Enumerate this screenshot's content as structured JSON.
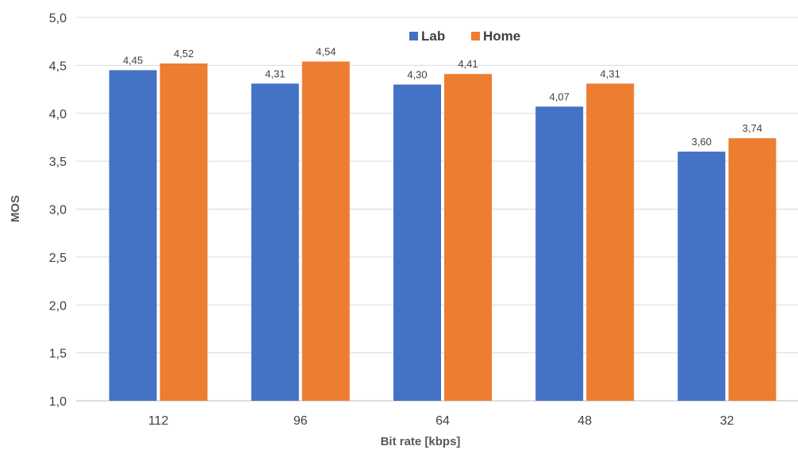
{
  "chart_data": {
    "type": "bar",
    "title": "",
    "xlabel": "Bit rate [kbps]",
    "ylabel": "MOS",
    "categories": [
      "112",
      "96",
      "64",
      "48",
      "32"
    ],
    "series": [
      {
        "name": "Lab",
        "color": "#4472C4",
        "values": [
          4.45,
          4.31,
          4.3,
          4.07,
          3.6
        ],
        "labels": [
          "4,45",
          "4,31",
          "4,30",
          "4,07",
          "3,60"
        ]
      },
      {
        "name": "Home",
        "color": "#ED7D31",
        "values": [
          4.52,
          4.54,
          4.41,
          4.31,
          3.74
        ],
        "labels": [
          "4,52",
          "4,54",
          "4,41",
          "4,31",
          "3,74"
        ]
      }
    ],
    "ylim": [
      1.0,
      5.0
    ],
    "yticks": [
      1.0,
      1.5,
      2.0,
      2.5,
      3.0,
      3.5,
      4.0,
      4.5,
      5.0
    ],
    "ytick_labels": [
      "1,0",
      "1,5",
      "2,0",
      "2,5",
      "3,0",
      "3,5",
      "4,0",
      "4,5",
      "5,0"
    ],
    "grid": true,
    "legend_position": "top-center"
  }
}
